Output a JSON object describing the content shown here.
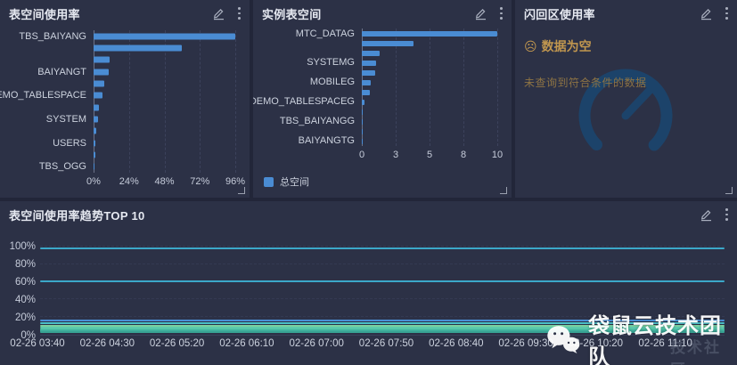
{
  "colors": {
    "bar": "#4a8cd3",
    "panel_bg": "#2c3146",
    "page_bg": "#222639",
    "empty_title": "#c0964f",
    "empty_desc": "#8d7344",
    "gauge": "#1b466e",
    "line_cyan": "#3ba8c9",
    "line_blue": "#4a8fd6"
  },
  "icons": {
    "edit": "edit-pencil",
    "more": "kebab-menu",
    "empty_face": "☹",
    "wechat": "wechat-bubbles"
  },
  "panels": {
    "tablespace_usage": {
      "title": "表空间使用率",
      "chart_data": {
        "type": "bar",
        "orientation": "horizontal",
        "unit": "%",
        "max": 96,
        "ticks": [
          "0%",
          "24%",
          "48%",
          "72%",
          "96%"
        ],
        "rows": [
          {
            "label": "TBS_BAIYANG",
            "value": 96
          },
          {
            "label": "",
            "value": 60
          },
          {
            "label": "",
            "value": 11
          },
          {
            "label": "BAIYANGT",
            "value": 10
          },
          {
            "label": "",
            "value": 7
          },
          {
            "label": "DEMO_TABLESPACE",
            "value": 6
          },
          {
            "label": "",
            "value": 3.5
          },
          {
            "label": "SYSTEM",
            "value": 3
          },
          {
            "label": "",
            "value": 2
          },
          {
            "label": "USERS",
            "value": 1.5
          },
          {
            "label": "",
            "value": 1
          },
          {
            "label": "TBS_OGG",
            "value": 0.4
          }
        ]
      }
    },
    "instance_tablespace": {
      "title": "实例表空间",
      "legend": "总空间",
      "chart_data": {
        "type": "bar",
        "orientation": "horizontal",
        "max": 10,
        "ticks": [
          "0",
          "3",
          "5",
          "8",
          "10"
        ],
        "rows": [
          {
            "label": "MTC_DATAG",
            "value": 10
          },
          {
            "label": "",
            "value": 3.8
          },
          {
            "label": "",
            "value": 1.3
          },
          {
            "label": "SYSTEMG",
            "value": 1.05
          },
          {
            "label": "",
            "value": 1.0
          },
          {
            "label": "MOBILEG",
            "value": 0.65
          },
          {
            "label": "",
            "value": 0.6
          },
          {
            "label": "DEMO_TABLESPACEG",
            "value": 0.18
          },
          {
            "label": "",
            "value": 0.08
          },
          {
            "label": "TBS_BAIYANGG",
            "value": 0.05
          },
          {
            "label": "",
            "value": 0.03
          },
          {
            "label": "BAIYANGTG",
            "value": 0.02
          }
        ]
      }
    },
    "flashback_usage": {
      "title": "闪回区使用率",
      "empty_title": "数据为空",
      "empty_desc": "未查询到符合条件的数据"
    },
    "trend": {
      "title": "表空间使用率趋势TOP 10",
      "chart_data": {
        "type": "line",
        "ylim": [
          0,
          100
        ],
        "y_ticks": [
          "100%",
          "80%",
          "60%",
          "40%",
          "20%",
          "0%"
        ],
        "x_labels": [
          "02-26 03:40",
          "02-26 04:30",
          "02-26 05:20",
          "02-26 06:10",
          "02-26 07:00",
          "02-26 07:50",
          "02-26 08:40",
          "02-26 09:30",
          "02-26 10:20",
          "02-26 11:10"
        ],
        "series": [
          {
            "value": 97,
            "color": "#3ba8c9"
          },
          {
            "value": 60,
            "color": "#3ba8c9"
          },
          {
            "value": 15,
            "color": "#4a8fd6"
          },
          {
            "value": 12,
            "color": "#49bfc9"
          },
          {
            "value": 9,
            "color": "#7bcfa0"
          },
          {
            "value": 7,
            "color": "#5cc9ad"
          },
          {
            "value": 5,
            "color": "#52c3a6"
          },
          {
            "value": 4,
            "color": "#46b8a2"
          },
          {
            "value": 3,
            "color": "#3fae9b"
          },
          {
            "value": 2,
            "color": "#38a394"
          }
        ]
      }
    }
  },
  "watermark": {
    "text": "袋鼠云技术团队",
    "ghost": "技术社区"
  }
}
